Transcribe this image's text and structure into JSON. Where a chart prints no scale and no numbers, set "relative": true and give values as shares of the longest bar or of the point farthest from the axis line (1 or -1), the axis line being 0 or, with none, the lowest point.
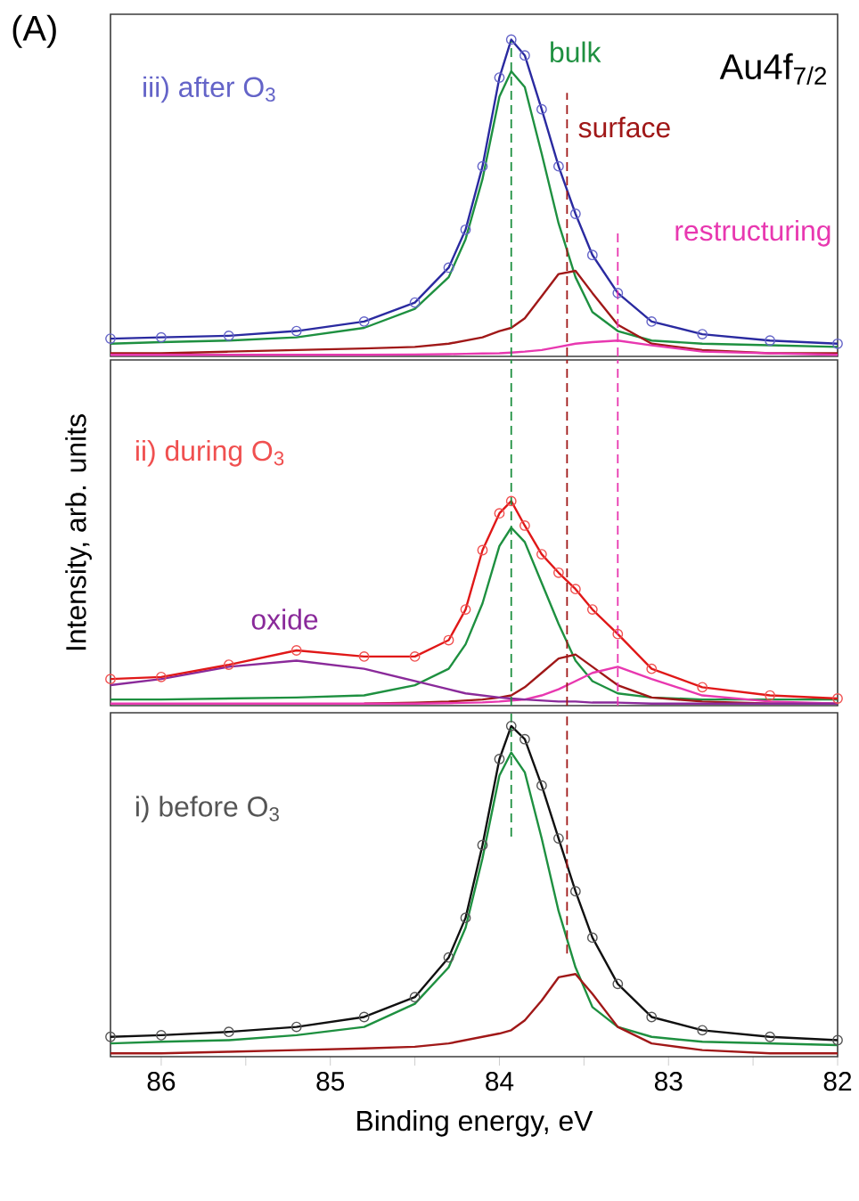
{
  "chart_data": [
    {
      "type": "line",
      "relative": true,
      "xlim": [
        86.3,
        82
      ],
      "tick_labels": false,
      "x": [
        86.3,
        86,
        85.6,
        85.2,
        84.8,
        84.5,
        84.3,
        84.2,
        84.1,
        84.0,
        83.93,
        83.85,
        83.75,
        83.65,
        83.55,
        83.45,
        83.3,
        83.1,
        82.8,
        82.4,
        82.0
      ],
      "series": [
        {
          "name": "bulk",
          "type": "line",
          "color": "#1e9040",
          "values": [
            0.04,
            0.045,
            0.05,
            0.06,
            0.09,
            0.15,
            0.25,
            0.37,
            0.56,
            0.82,
            0.9,
            0.85,
            0.64,
            0.42,
            0.25,
            0.14,
            0.08,
            0.05,
            0.04,
            0.035,
            0.03
          ]
        },
        {
          "name": "surface",
          "type": "line",
          "color": "#a01818",
          "values": [
            0.01,
            0.01,
            0.015,
            0.02,
            0.025,
            0.03,
            0.04,
            0.05,
            0.06,
            0.08,
            0.09,
            0.12,
            0.19,
            0.26,
            0.27,
            0.2,
            0.1,
            0.04,
            0.02,
            0.01,
            0.01
          ]
        },
        {
          "name": "restructuring",
          "type": "line",
          "color": "#e838b0",
          "values": [
            0.005,
            0.005,
            0.005,
            0.005,
            0.005,
            0.006,
            0.007,
            0.008,
            0.009,
            0.01,
            0.012,
            0.015,
            0.02,
            0.03,
            0.04,
            0.045,
            0.05,
            0.035,
            0.015,
            0.01,
            0.005
          ]
        },
        {
          "name": "iii) after O$_{3}$",
          "type": "scatter",
          "marker": "circle",
          "color": "#6464c8",
          "values": [
            0.056,
            0.06,
            0.065,
            0.08,
            0.11,
            0.17,
            0.28,
            0.4,
            0.6,
            0.88,
            1.0,
            0.95,
            0.78,
            0.6,
            0.45,
            0.32,
            0.2,
            0.11,
            0.07,
            0.05,
            0.04
          ]
        },
        {
          "type": "line",
          "color": "#2a2aa0",
          "values": [
            0.056,
            0.06,
            0.065,
            0.08,
            0.11,
            0.17,
            0.28,
            0.4,
            0.6,
            0.88,
            1.0,
            0.95,
            0.78,
            0.6,
            0.45,
            0.32,
            0.2,
            0.11,
            0.07,
            0.05,
            0.04
          ]
        }
      ],
      "ref_lines": [
        {
          "axis": "x",
          "value": 83.93,
          "color": "#1e9040",
          "line_style": "dashed"
        },
        {
          "axis": "x",
          "value": 83.6,
          "color": "#a01818",
          "line_style": "dashed"
        },
        {
          "axis": "x",
          "value": 83.3,
          "color": "#e838b0",
          "line_style": "dashed"
        }
      ],
      "annotations": [
        "Au4f$_{7/2}$",
        "(A)"
      ]
    },
    {
      "type": "line",
      "relative": true,
      "xlim": [
        86.3,
        82
      ],
      "tick_labels": false,
      "ylabel": "Intensity, arb. units",
      "x": [
        86.3,
        86,
        85.6,
        85.2,
        84.8,
        84.5,
        84.3,
        84.2,
        84.1,
        84.0,
        83.93,
        83.85,
        83.75,
        83.65,
        83.55,
        83.45,
        83.3,
        83.1,
        82.8,
        82.4,
        82.0
      ],
      "series": [
        {
          "type": "line",
          "color": "#1e9040",
          "values": [
            0.03,
            0.03,
            0.035,
            0.04,
            0.05,
            0.1,
            0.18,
            0.3,
            0.5,
            0.78,
            0.87,
            0.8,
            0.6,
            0.4,
            0.22,
            0.12,
            0.06,
            0.04,
            0.03,
            0.03,
            0.03
          ]
        },
        {
          "type": "line",
          "color": "#a01818",
          "values": [
            null,
            null,
            null,
            null,
            0.01,
            0.015,
            0.02,
            0.025,
            0.03,
            0.04,
            0.05,
            0.09,
            0.16,
            0.23,
            0.25,
            0.19,
            0.1,
            0.04,
            0.02,
            0.01,
            0.01
          ]
        },
        {
          "type": "line",
          "color": "#e838b0",
          "values": [
            0.01,
            0.01,
            0.01,
            0.01,
            0.01,
            0.01,
            0.012,
            0.014,
            0.016,
            0.02,
            0.025,
            0.03,
            0.05,
            0.08,
            0.12,
            0.16,
            0.19,
            0.13,
            0.05,
            0.02,
            0.01
          ]
        },
        {
          "name": "oxide",
          "type": "line",
          "color": "#8a2a9a",
          "values": [
            0.1,
            0.13,
            0.19,
            0.22,
            0.18,
            0.12,
            0.08,
            0.06,
            0.05,
            0.04,
            0.035,
            0.03,
            0.025,
            0.02,
            0.02,
            0.015,
            0.015,
            0.01,
            0.01,
            0.01,
            0.01
          ]
        },
        {
          "name": "ii) during O$_{3}$",
          "type": "scatter",
          "marker": "circle",
          "color": "#f05050",
          "values": [
            0.13,
            0.14,
            0.2,
            0.27,
            0.24,
            0.24,
            0.32,
            0.47,
            0.76,
            0.94,
            1.0,
            0.88,
            0.74,
            0.65,
            0.57,
            0.47,
            0.35,
            0.18,
            0.09,
            0.05,
            0.035
          ]
        },
        {
          "type": "line",
          "color": "#e01818",
          "values": [
            0.13,
            0.14,
            0.2,
            0.27,
            0.24,
            0.24,
            0.32,
            0.47,
            0.76,
            0.94,
            1.0,
            0.88,
            0.74,
            0.65,
            0.57,
            0.47,
            0.35,
            0.18,
            0.09,
            0.05,
            0.035
          ]
        }
      ],
      "ref_lines": [
        {
          "axis": "x",
          "value": 83.93,
          "color": "#1e9040",
          "line_style": "dashed"
        },
        {
          "axis": "x",
          "value": 83.6,
          "color": "#a01818",
          "line_style": "dashed"
        },
        {
          "axis": "x",
          "value": 83.3,
          "color": "#e838b0",
          "line_style": "dashed"
        }
      ]
    },
    {
      "type": "line",
      "relative": true,
      "xlim": [
        86.3,
        82
      ],
      "tick_labels": "x",
      "xlabel": "Binding energy, eV",
      "xticks": [
        86,
        {
          "value": 85.5,
          "label": null
        },
        85,
        {
          "value": 84.5,
          "label": null
        },
        84,
        {
          "value": 83.5,
          "label": null
        },
        83,
        {
          "value": 82.5,
          "label": null
        },
        82
      ],
      "x": [
        86.3,
        86,
        85.6,
        85.2,
        84.8,
        84.5,
        84.3,
        84.2,
        84.1,
        84.0,
        83.93,
        83.85,
        83.75,
        83.65,
        83.55,
        83.45,
        83.3,
        83.1,
        82.8,
        82.4,
        82.0
      ],
      "series": [
        {
          "type": "line",
          "color": "#1e9040",
          "values": [
            0.04,
            0.045,
            0.05,
            0.065,
            0.09,
            0.16,
            0.27,
            0.39,
            0.6,
            0.85,
            0.92,
            0.86,
            0.66,
            0.44,
            0.27,
            0.15,
            0.09,
            0.06,
            0.045,
            0.04,
            0.035
          ]
        },
        {
          "type": "line",
          "color": "#a01818",
          "values": [
            0.01,
            0.01,
            0.015,
            0.02,
            0.025,
            0.03,
            0.04,
            0.05,
            0.06,
            0.07,
            0.08,
            0.11,
            0.17,
            0.24,
            0.25,
            0.19,
            0.09,
            0.04,
            0.02,
            0.01,
            0.01
          ]
        },
        {
          "name": "i) before O$_{3}$",
          "type": "scatter",
          "marker": "circle",
          "color": "#555555",
          "values": [
            0.06,
            0.065,
            0.075,
            0.09,
            0.12,
            0.18,
            0.3,
            0.42,
            0.64,
            0.9,
            1.0,
            0.96,
            0.82,
            0.66,
            0.5,
            0.36,
            0.22,
            0.12,
            0.08,
            0.06,
            0.05
          ]
        },
        {
          "type": "line",
          "color": "#101010",
          "values": [
            0.06,
            0.065,
            0.075,
            0.09,
            0.12,
            0.18,
            0.3,
            0.42,
            0.64,
            0.9,
            1.0,
            0.96,
            0.82,
            0.66,
            0.5,
            0.36,
            0.22,
            0.12,
            0.08,
            0.06,
            0.05
          ]
        }
      ],
      "ref_lines": [
        {
          "axis": "x",
          "value": 83.93,
          "color": "#1e9040",
          "line_style": "dashed"
        },
        {
          "axis": "x",
          "value": 83.6,
          "color": "#a01818",
          "line_style": "dashed"
        }
      ]
    }
  ]
}
